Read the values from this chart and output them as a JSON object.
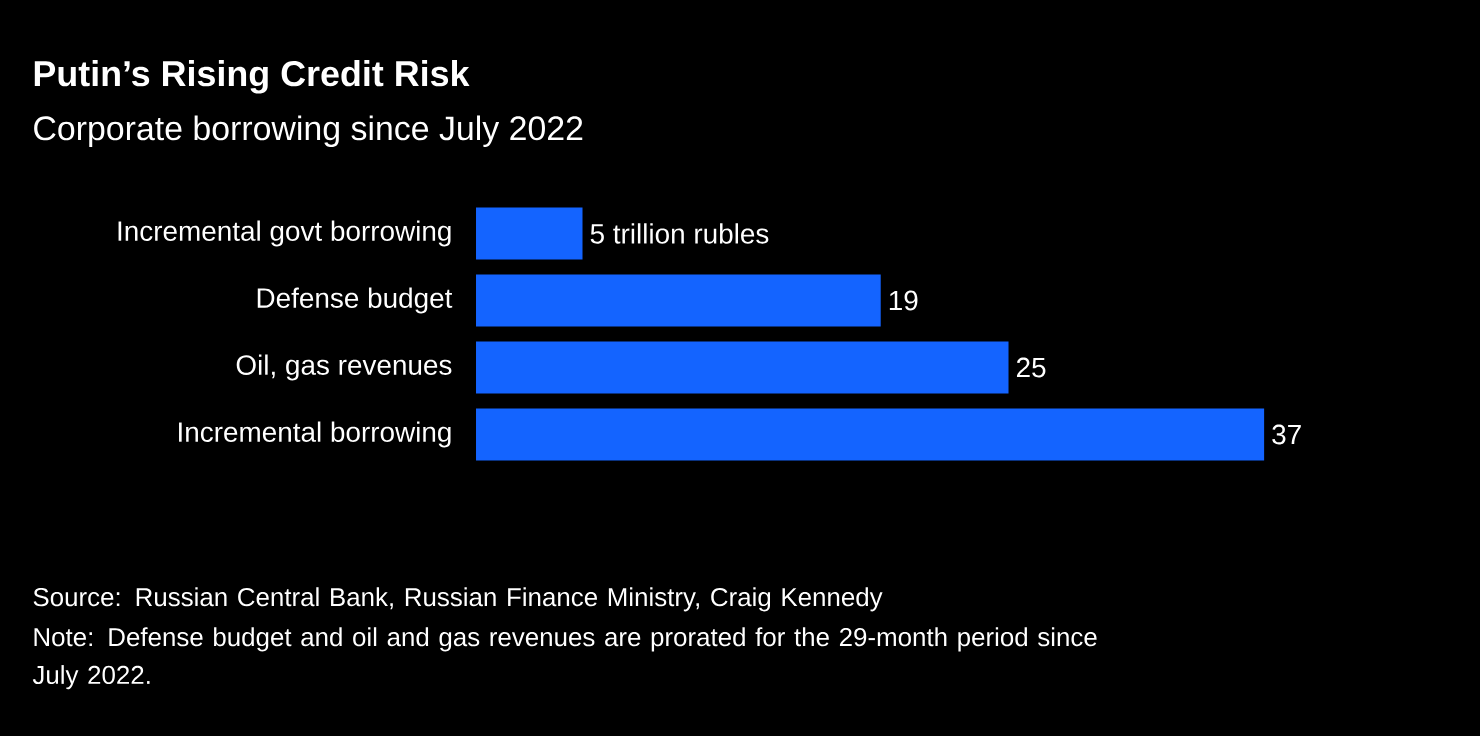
{
  "chart_data": {
    "type": "bar",
    "orientation": "horizontal",
    "title": "Putin’s Rising Credit Risk",
    "subtitle": "Corporate borrowing since July 2022",
    "categories": [
      "Incremental govt borrowing",
      "Defense budget",
      "Oil, gas revenues",
      "Incremental borrowing"
    ],
    "values": [
      5,
      19,
      25,
      37
    ],
    "color": "#1464ff",
    "value_labels": [
      "5 trillion rubles",
      "19",
      "25",
      "37"
    ],
    "annotations": [
      "Source: Russian Central Bank, Russian Finance Ministry, Craig Kennedy",
      "Note: Defense budget and oil and gas revenues are prorated for the 29-month period since July 2022."
    ]
  }
}
